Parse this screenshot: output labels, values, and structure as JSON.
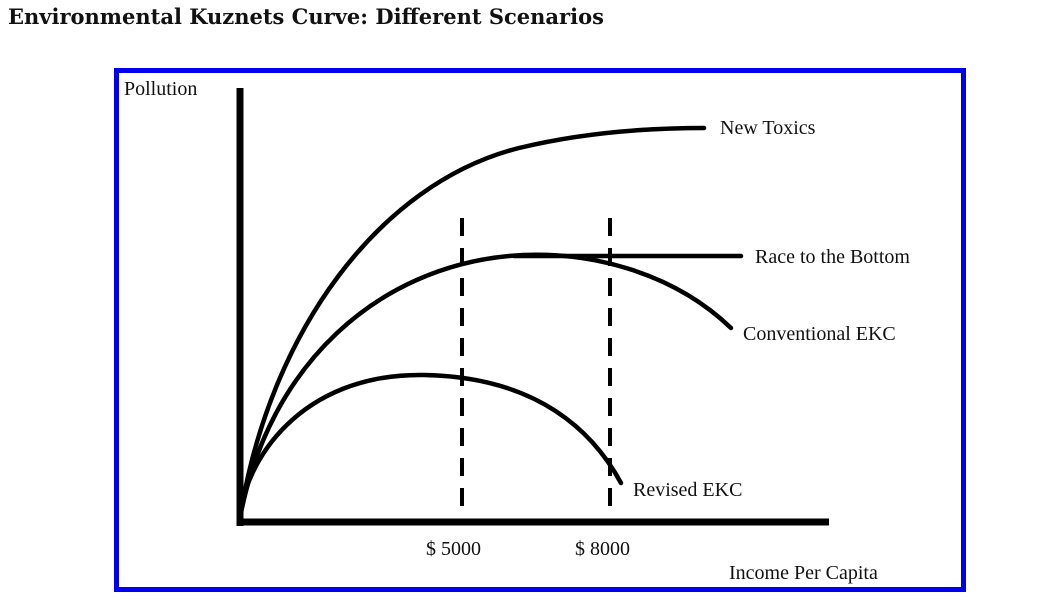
{
  "title": "Environmental Kuznets Curve: Different Scenarios",
  "axes": {
    "y_label": "Pollution",
    "x_label": "Income Per Capita"
  },
  "markers": [
    {
      "label": "$ 5000"
    },
    {
      "label": "$ 8000"
    }
  ],
  "curves": {
    "new_toxics": "New Toxics",
    "race_to_bottom": "Race to the Bottom",
    "conventional_ekc": "Conventional EKC",
    "revised_ekc": "Revised EKC"
  },
  "colors": {
    "frame_border": "#0000ee",
    "lines": "#000000",
    "background": "#ffffff"
  }
}
